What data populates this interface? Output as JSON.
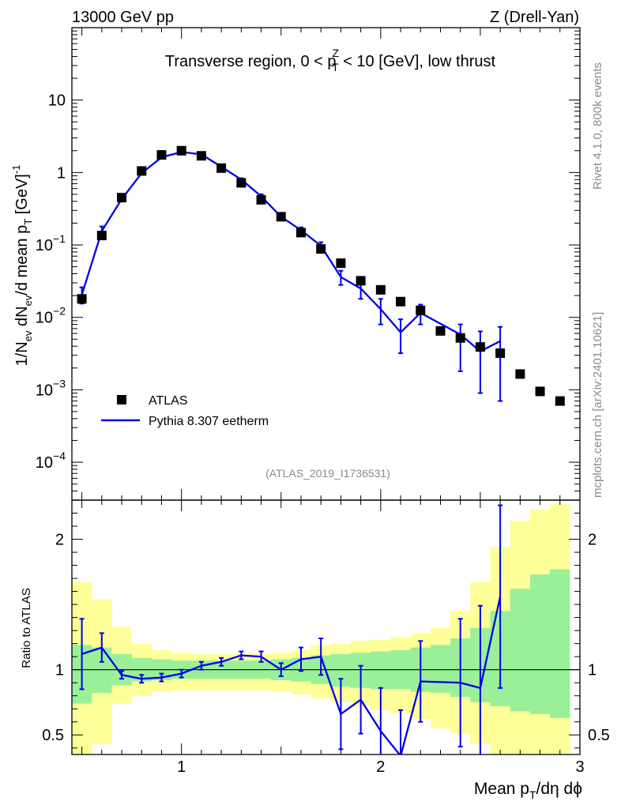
{
  "chart_data": {
    "header_left": "13000 GeV pp",
    "header_right": "Z (Drell-Yan)",
    "title": "Transverse region, 0 < p_T^Z < 10 [GeV], low thrust",
    "title_parts": {
      "pre": "Transverse region, 0 < p",
      "sup": "Z",
      "sub": "T",
      "post": " < 10 [GeV], low thrust"
    },
    "analysis_label": "(ATLAS_2019_I1736531)",
    "side_label_top": "Rivet 4.1.0,  800k events",
    "side_label_bottom": "mcplots.cern.ch [arXiv:2401.10621]",
    "main_panel": {
      "type": "scatter",
      "yscale": "log",
      "ylabel": "1/N_ev dN_ev/d mean p_T [GeV]^-1",
      "ylim": [
        3e-05,
        100
      ],
      "y_ticks": [
        {
          "value": 0.0001,
          "base": "10",
          "exp": "−4"
        },
        {
          "value": 0.001,
          "base": "10",
          "exp": "−3"
        },
        {
          "value": 0.01,
          "base": "10",
          "exp": "−2"
        },
        {
          "value": 0.1,
          "base": "10",
          "exp": "−1"
        },
        {
          "value": 1,
          "base": "1",
          "exp": ""
        },
        {
          "value": 10,
          "base": "10",
          "exp": ""
        }
      ]
    },
    "ratio_panel": {
      "ylabel": "Ratio to ATLAS",
      "ylim": [
        0.35,
        2.3
      ],
      "y_ticks": [
        {
          "value": 0.5,
          "label": "0.5"
        },
        {
          "value": 1,
          "label": "1"
        },
        {
          "value": 2,
          "label": "2"
        }
      ]
    },
    "xlabel": "Mean p_T/dη dϕ",
    "xlabel_parts": {
      "pre": "Mean p",
      "sub": "T",
      "post": "/dη dϕ"
    },
    "xlim": [
      0.45,
      3.0
    ],
    "x_ticks": [
      {
        "value": 1,
        "label": "1"
      },
      {
        "value": 2,
        "label": "2"
      },
      {
        "value": 3,
        "label": "3"
      }
    ],
    "legend": {
      "position": "bottom-left",
      "atlas_label": "ATLAS",
      "mc_label": "Pythia 8.307 eetherm"
    },
    "bin_edges": [
      0.45,
      0.55,
      0.65,
      0.75,
      0.85,
      0.95,
      1.05,
      1.15,
      1.25,
      1.35,
      1.45,
      1.55,
      1.65,
      1.75,
      1.85,
      1.95,
      2.05,
      2.15,
      2.25,
      2.35,
      2.45,
      2.55,
      2.65,
      2.75,
      2.85,
      2.95
    ],
    "series": [
      {
        "name": "ATLAS",
        "x": [
          0.5,
          0.6,
          0.7,
          0.8,
          0.9,
          1.0,
          1.1,
          1.2,
          1.3,
          1.4,
          1.5,
          1.6,
          1.7,
          1.8,
          1.9,
          2.0,
          2.1,
          2.2,
          2.3,
          2.4,
          2.5,
          2.6,
          2.7,
          2.8,
          2.9
        ],
        "y": [
          0.018,
          0.135,
          0.45,
          1.05,
          1.75,
          2.0,
          1.7,
          1.15,
          0.72,
          0.42,
          0.245,
          0.148,
          0.088,
          0.056,
          0.032,
          0.024,
          0.0165,
          0.0125,
          0.0065,
          0.0052,
          0.0039,
          0.0032,
          0.00165,
          0.00095,
          0.0007
        ]
      },
      {
        "name": "Pythia 8.307 eetherm",
        "x": [
          0.5,
          0.6,
          0.7,
          0.8,
          0.9,
          1.0,
          1.1,
          1.2,
          1.3,
          1.4,
          1.5,
          1.6,
          1.7,
          1.8,
          1.9,
          2.0,
          2.1,
          2.2,
          2.4,
          2.5,
          2.6
        ],
        "y": [
          0.0205,
          0.155,
          0.43,
          0.98,
          1.62,
          1.92,
          1.78,
          1.2,
          0.8,
          0.47,
          0.245,
          0.16,
          0.097,
          0.036,
          0.025,
          0.013,
          0.0062,
          0.0115,
          0.0058,
          0.0034,
          0.0047
        ],
        "yerr_low": [
          0.005,
          0.02,
          0.03,
          0.04,
          0.05,
          0.05,
          0.05,
          0.04,
          0.03,
          0.025,
          0.015,
          0.013,
          0.01,
          0.008,
          0.007,
          0.005,
          0.003,
          0.0035,
          0.004,
          0.0025,
          0.004
        ],
        "yerr_high": [
          0.0055,
          0.025,
          0.035,
          0.05,
          0.06,
          0.06,
          0.06,
          0.05,
          0.035,
          0.03,
          0.018,
          0.015,
          0.012,
          0.008,
          0.008,
          0.005,
          0.0032,
          0.0035,
          0.0022,
          0.003,
          0.0027
        ]
      }
    ],
    "ratio": {
      "x": [
        0.5,
        0.6,
        0.7,
        0.8,
        0.9,
        1.0,
        1.1,
        1.2,
        1.3,
        1.4,
        1.5,
        1.6,
        1.7,
        1.8,
        1.9,
        2.0,
        2.1,
        2.2,
        2.4,
        2.5,
        2.6
      ],
      "y": [
        1.12,
        1.17,
        0.96,
        0.93,
        0.94,
        0.97,
        1.03,
        1.06,
        1.11,
        1.1,
        1.0,
        1.08,
        1.1,
        0.66,
        0.77,
        0.53,
        0.34,
        0.91,
        0.9,
        0.86,
        1.56
      ],
      "err": [
        0.27,
        0.11,
        0.03,
        0.03,
        0.03,
        0.03,
        0.03,
        0.03,
        0.03,
        0.04,
        0.05,
        0.09,
        0.14,
        0.27,
        0.26,
        0.33,
        0.35,
        0.31,
        0.49,
        0.63,
        0.7
      ],
      "band_green_low": [
        0.74,
        0.82,
        0.88,
        0.91,
        0.92,
        0.93,
        0.93,
        0.93,
        0.93,
        0.93,
        0.92,
        0.91,
        0.89,
        0.87,
        0.86,
        0.85,
        0.85,
        0.83,
        0.82,
        0.79,
        0.75,
        0.72,
        0.68,
        0.66,
        0.63
      ],
      "band_green_high": [
        1.19,
        1.17,
        1.12,
        1.09,
        1.08,
        1.07,
        1.07,
        1.07,
        1.07,
        1.07,
        1.08,
        1.09,
        1.11,
        1.12,
        1.13,
        1.14,
        1.15,
        1.17,
        1.19,
        1.24,
        1.32,
        1.45,
        1.62,
        1.73,
        1.77
      ],
      "band_yellow_low": [
        0.35,
        0.43,
        0.74,
        0.8,
        0.83,
        0.84,
        0.84,
        0.84,
        0.84,
        0.84,
        0.83,
        0.81,
        0.78,
        0.75,
        0.72,
        0.69,
        0.66,
        0.62,
        0.55,
        0.51,
        0.43,
        0.35,
        0.35,
        0.35,
        0.35
      ],
      "band_yellow_high": [
        1.67,
        1.54,
        1.33,
        1.2,
        1.15,
        1.13,
        1.12,
        1.12,
        1.12,
        1.12,
        1.13,
        1.15,
        1.19,
        1.2,
        1.22,
        1.23,
        1.25,
        1.28,
        1.32,
        1.45,
        1.67,
        1.94,
        2.14,
        2.23,
        2.27
      ]
    }
  }
}
